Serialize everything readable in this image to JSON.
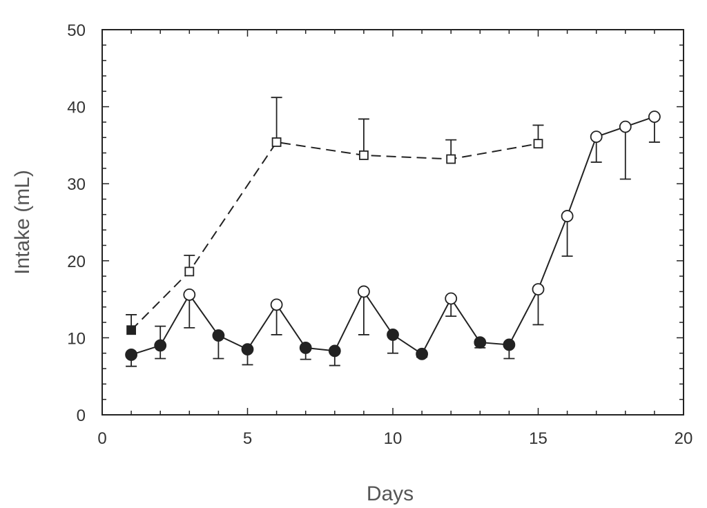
{
  "chart_data": {
    "type": "line",
    "title": "",
    "xlabel": "Days",
    "ylabel": "Intake (mL)",
    "xlim": [
      0,
      20
    ],
    "ylim": [
      0,
      50
    ],
    "xticks": [
      0,
      5,
      10,
      15,
      20
    ],
    "yticks": [
      0,
      10,
      20,
      30,
      40,
      50
    ],
    "grid": false,
    "series": [
      {
        "line_style": "solid",
        "points": [
          {
            "x": 1,
            "y": 7.8,
            "filled": true,
            "err_low": 6.3,
            "err_high": null
          },
          {
            "x": 2,
            "y": 9.0,
            "filled": true,
            "err_low": 7.3,
            "err_high": 11.5
          },
          {
            "x": 3,
            "y": 15.6,
            "filled": false,
            "err_low": 11.3,
            "err_high": null
          },
          {
            "x": 4,
            "y": 10.3,
            "filled": true,
            "err_low": 7.3,
            "err_high": null
          },
          {
            "x": 5,
            "y": 8.5,
            "filled": true,
            "err_low": 6.5,
            "err_high": null
          },
          {
            "x": 6,
            "y": 14.3,
            "filled": false,
            "err_low": 10.4,
            "err_high": null
          },
          {
            "x": 7,
            "y": 8.7,
            "filled": true,
            "err_low": 7.2,
            "err_high": null
          },
          {
            "x": 8,
            "y": 8.3,
            "filled": true,
            "err_low": 6.4,
            "err_high": null
          },
          {
            "x": 9,
            "y": 16.0,
            "filled": false,
            "err_low": 10.4,
            "err_high": null
          },
          {
            "x": 10,
            "y": 10.4,
            "filled": true,
            "err_low": 8.0,
            "err_high": null
          },
          {
            "x": 11,
            "y": 7.9,
            "filled": true,
            "err_low": 7.5,
            "err_high": null
          },
          {
            "x": 12,
            "y": 15.1,
            "filled": false,
            "err_low": 12.8,
            "err_high": null
          },
          {
            "x": 13,
            "y": 9.4,
            "filled": true,
            "err_low": 8.7,
            "err_high": null
          },
          {
            "x": 14,
            "y": 9.1,
            "filled": true,
            "err_low": 7.3,
            "err_high": null
          },
          {
            "x": 15,
            "y": 16.3,
            "filled": false,
            "err_low": 11.7,
            "err_high": null
          },
          {
            "x": 16,
            "y": 25.8,
            "filled": false,
            "err_low": 20.6,
            "err_high": null
          },
          {
            "x": 17,
            "y": 36.1,
            "filled": false,
            "err_low": 32.8,
            "err_high": null
          },
          {
            "x": 18,
            "y": 37.4,
            "filled": false,
            "err_low": 30.6,
            "err_high": null
          },
          {
            "x": 19,
            "y": 38.7,
            "filled": false,
            "err_low": 35.4,
            "err_high": null
          }
        ]
      },
      {
        "line_style": "dashed",
        "points": [
          {
            "x": 1,
            "y": 11.0,
            "filled": true,
            "err_low": null,
            "err_high": 13.0
          },
          {
            "x": 3,
            "y": 18.6,
            "filled": false,
            "err_low": null,
            "err_high": 20.7
          },
          {
            "x": 6,
            "y": 35.4,
            "filled": false,
            "err_low": null,
            "err_high": 41.2
          },
          {
            "x": 9,
            "y": 33.7,
            "filled": false,
            "err_low": null,
            "err_high": 38.4
          },
          {
            "x": 12,
            "y": 33.2,
            "filled": false,
            "err_low": null,
            "err_high": 35.7
          },
          {
            "x": 15,
            "y": 35.2,
            "filled": false,
            "err_low": null,
            "err_high": 37.6
          }
        ]
      }
    ]
  }
}
